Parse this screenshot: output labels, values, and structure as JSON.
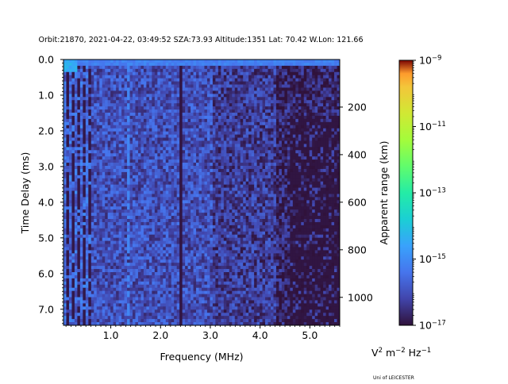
{
  "chart_data": {
    "type": "heatmap",
    "title": "Orbit:21870, 2021-04-22, 03:49:52 SZA:73.93 Altitude:1351 Lat: 70.42 W.Lon: 121.66",
    "xlabel": "Frequency (MHz)",
    "ylabel": "Time Delay (ms)",
    "ylabel_right": "Apparent range (km)",
    "xlim": [
      0.05,
      5.6
    ],
    "ylim": [
      7.45,
      0.0
    ],
    "xticks": [
      1.0,
      2.0,
      3.0,
      4.0,
      5.0
    ],
    "xtick_labels": [
      "1.0",
      "2.0",
      "3.0",
      "4.0",
      "5.0"
    ],
    "yticks": [
      0.0,
      1.0,
      2.0,
      3.0,
      4.0,
      5.0,
      6.0,
      7.0
    ],
    "ytick_labels": [
      "0.0",
      "1.0",
      "2.0",
      "3.0",
      "4.0",
      "5.0",
      "6.0",
      "7.0"
    ],
    "right_ticks_km": [
      200,
      400,
      600,
      800,
      1000
    ],
    "right_tick_labels": [
      "200",
      "400",
      "600",
      "800",
      "1000"
    ],
    "km_per_ms": 150,
    "colorbar": {
      "scale": "log",
      "min": 1e-17,
      "max": 1e-09,
      "ticks": [
        -9,
        -11,
        -13,
        -15,
        -17
      ],
      "tick_base": "10",
      "tick_exponents": [
        "−9",
        "−11",
        "−13",
        "−15",
        "−17"
      ],
      "colormap": "turbo"
    },
    "units_label": {
      "a": "V",
      "a_exp": "2",
      "b": " m",
      "b_exp": "−2",
      "c": " Hz",
      "c_exp": "−1"
    },
    "grid": false,
    "features": {
      "bright_bar_ms": 0.12,
      "dark_line_mhz": 2.38,
      "bright_line_mhz": 1.33
    }
  },
  "footer": {
    "credit": "Uni of LEICESTER"
  }
}
